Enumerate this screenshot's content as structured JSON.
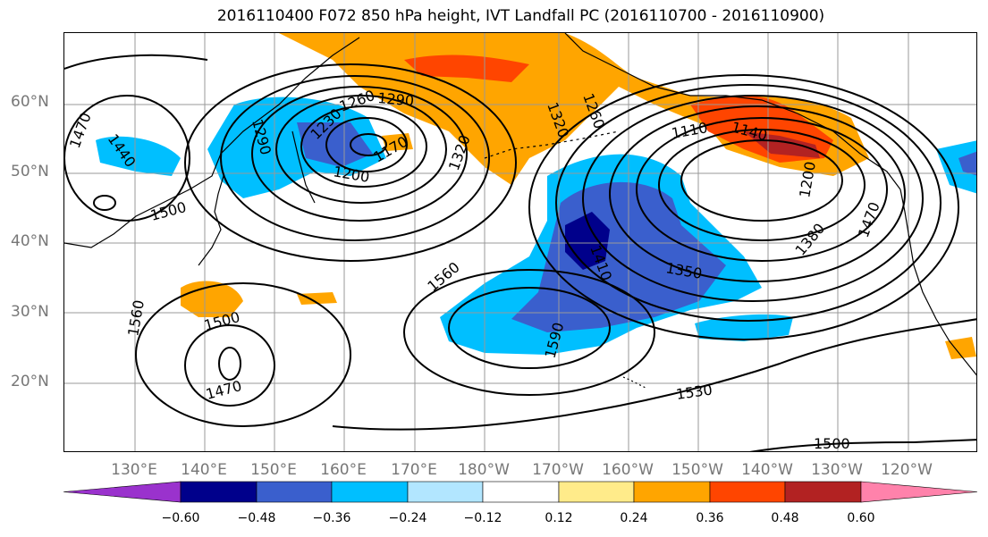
{
  "title": "2016110400 F072 850 hPa height, IVT Landfall PC (2016110700 - 2016110900)",
  "lat_labels": [
    "60°N",
    "50°N",
    "40°N",
    "30°N",
    "20°N"
  ],
  "lon_labels": [
    "130°E",
    "140°E",
    "150°E",
    "160°E",
    "170°E",
    "180°W",
    "170°W",
    "160°W",
    "150°W",
    "140°W",
    "130°W",
    "120°W"
  ],
  "colorbar": {
    "ticks": [
      "−0.60",
      "−0.48",
      "−0.36",
      "−0.24",
      "−0.12",
      "0.12",
      "0.24",
      "0.36",
      "0.48",
      "0.60"
    ],
    "colors": [
      "#9a32cd",
      "#00008b",
      "#3a5fcd",
      "#00bfff",
      "#b2e6ff",
      "#ffffff",
      "#ffeb8a",
      "#ffa500",
      "#ff4500",
      "#b22222",
      "#ff82ab"
    ],
    "extend": "both"
  },
  "contour_labels": [
    "1470",
    "1440",
    "1500",
    "1530",
    "1560",
    "1590",
    "1500",
    "1470",
    "1560",
    "1290",
    "1260",
    "1320",
    "1230",
    "1290",
    "1200",
    "1170",
    "1320",
    "1260",
    "1110",
    "1140",
    "1200",
    "1380",
    "1350",
    "1470",
    "1410",
    "1500"
  ],
  "colors": {
    "axis_label": "#777777",
    "contour": "#000000",
    "grid": "#999999"
  }
}
